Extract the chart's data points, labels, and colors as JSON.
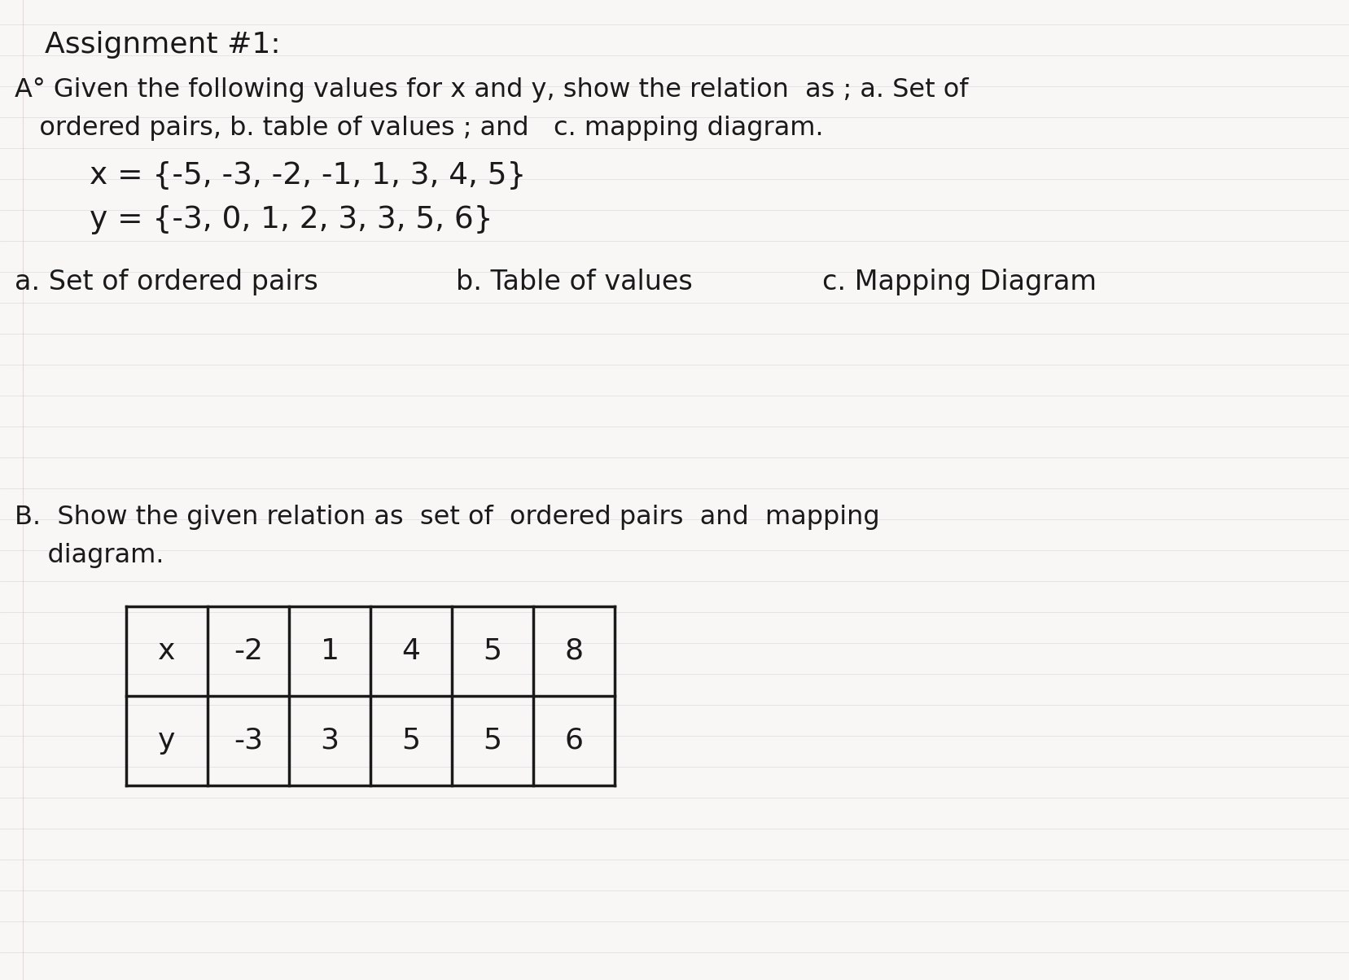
{
  "bg_color": "#ffffff",
  "paper_color": "#f8f7f5",
  "text_color": "#1a1a1a",
  "line_color": "#c8ccd8",
  "title": "Assignment #1:",
  "line_A1": "A° Given the following values for x and y, show the relation  as ; a. Set of",
  "line_A2": "   ordered pairs, b. table of values ; and   c. mapping diagram.",
  "line_x": "         x = {-5, -3, -2, -1, 1, 3, 4, 5}",
  "line_y": "         y = {-3, 0, 1, 2, 3, 3, 5, 6}",
  "label_a": "a. Set of ordered pairs",
  "label_b": "b. Table of values",
  "label_c": "c. Mapping Diagram",
  "line_B1": "B.  Show the given relation as  set of  ordered pairs  and  mapping",
  "line_B2": "    diagram.",
  "table_x_header": "x",
  "table_y_header": "y",
  "table_x_values": [
    "-2",
    "1",
    "4",
    "5",
    "8"
  ],
  "table_y_values": [
    "-3",
    "3",
    "5",
    "5",
    "6"
  ]
}
